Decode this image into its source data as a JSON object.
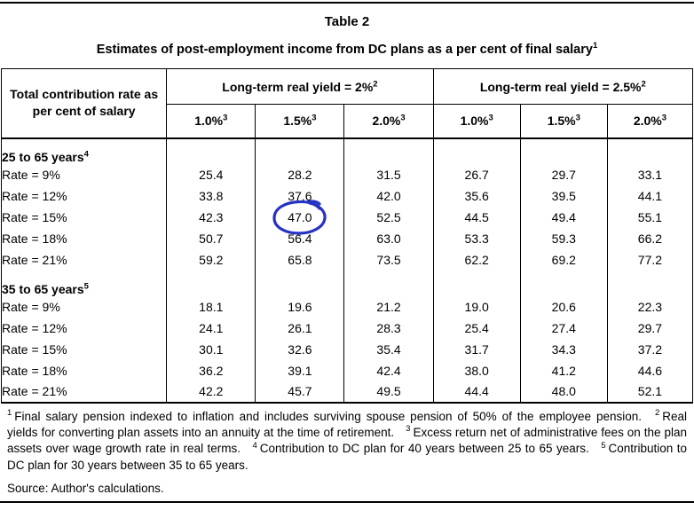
{
  "title": "Table 2",
  "subtitle": "Estimates of post-employment income from DC plans as a per cent of final salary",
  "subtitle_sup": "1",
  "table": {
    "col1_header": "Total contribution rate as per cent of salary",
    "groups": [
      {
        "label": "Long-term real yield = 2%",
        "sup": "2"
      },
      {
        "label": "Long-term real yield = 2.5%",
        "sup": "2"
      }
    ],
    "subheaders": [
      {
        "label": "1.0%",
        "sup": "3"
      },
      {
        "label": "1.5%",
        "sup": "3"
      },
      {
        "label": "2.0%",
        "sup": "3"
      },
      {
        "label": "1.0%",
        "sup": "3"
      },
      {
        "label": "1.5%",
        "sup": "3"
      },
      {
        "label": "2.0%",
        "sup": "3"
      }
    ],
    "sections": [
      {
        "label": "25 to 65 years",
        "sup": "4",
        "rows": [
          {
            "label": "Rate = 9%",
            "values": [
              "25.4",
              "28.2",
              "31.5",
              "26.7",
              "29.7",
              "33.1"
            ]
          },
          {
            "label": "Rate = 12%",
            "values": [
              "33.8",
              "37.6",
              "42.0",
              "35.6",
              "39.5",
              "44.1"
            ]
          },
          {
            "label": "Rate = 15%",
            "values": [
              "42.3",
              "47.0",
              "52.5",
              "44.5",
              "49.4",
              "55.1"
            ]
          },
          {
            "label": "Rate = 18%",
            "values": [
              "50.7",
              "56.4",
              "63.0",
              "53.3",
              "59.3",
              "66.2"
            ]
          },
          {
            "label": "Rate = 21%",
            "values": [
              "59.2",
              "65.8",
              "73.5",
              "62.2",
              "69.2",
              "77.2"
            ]
          }
        ]
      },
      {
        "label": "35 to 65 years",
        "sup": "5",
        "rows": [
          {
            "label": "Rate = 9%",
            "values": [
              "18.1",
              "19.6",
              "21.2",
              "19.0",
              "20.6",
              "22.3"
            ]
          },
          {
            "label": "Rate = 12%",
            "values": [
              "24.1",
              "26.1",
              "28.3",
              "25.4",
              "27.4",
              "29.7"
            ]
          },
          {
            "label": "Rate = 15%",
            "values": [
              "30.1",
              "32.6",
              "35.4",
              "31.7",
              "34.3",
              "37.2"
            ]
          },
          {
            "label": "Rate = 18%",
            "values": [
              "36.2",
              "39.1",
              "42.4",
              "38.0",
              "41.2",
              "44.6"
            ]
          },
          {
            "label": "Rate = 21%",
            "values": [
              "42.2",
              "45.7",
              "49.5",
              "44.4",
              "48.0",
              "52.1"
            ]
          }
        ]
      }
    ]
  },
  "annotation": {
    "circled_value": "47.0",
    "section": 0,
    "row": 2,
    "col": 1,
    "color": "#2633c2"
  },
  "footnotes": [
    {
      "sup": "1",
      "text": "Final salary pension indexed to inflation and includes surviving spouse pension of 50% of the employee pension."
    },
    {
      "sup": "2",
      "text": "Real yields for converting plan assets into an annuity at the time of retirement."
    },
    {
      "sup": "3",
      "text": "Excess return net of administrative fees on the plan assets over wage growth rate in real terms."
    },
    {
      "sup": "4",
      "text": "Contribution to DC plan for 40 years between 25 to 65 years."
    },
    {
      "sup": "5",
      "text": "Contribution to DC plan for 30 years between 35 to 65 years."
    }
  ],
  "source": "Source: Author's calculations."
}
